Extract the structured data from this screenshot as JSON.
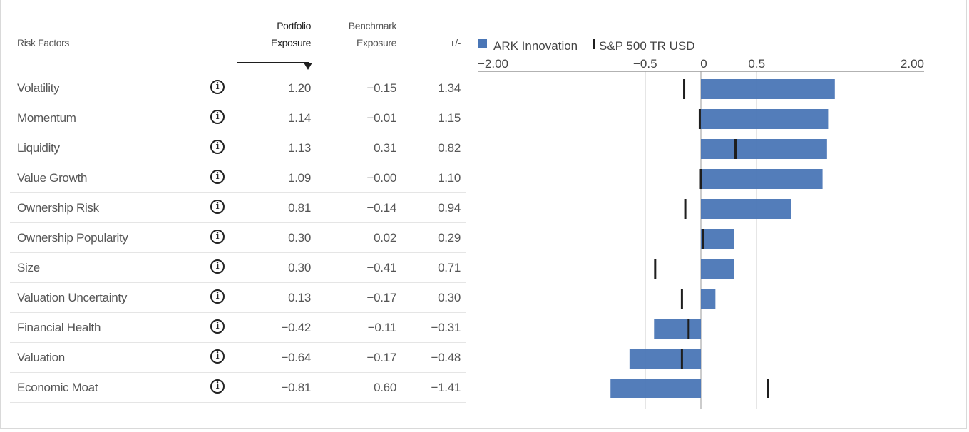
{
  "table": {
    "headers": {
      "factor": "Risk Factors",
      "portfolio_line1": "Portfolio",
      "portfolio_line2": "Exposure",
      "benchmark_line1": "Benchmark",
      "benchmark_line2": "Exposure",
      "diff": "+/-"
    },
    "sorted_by": "Portfolio Exposure",
    "info_icon": "i",
    "rows": [
      {
        "factor": "Volatility",
        "portfolio": "1.20",
        "benchmark": "−0.15",
        "diff": "1.34"
      },
      {
        "factor": "Momentum",
        "portfolio": "1.14",
        "benchmark": "−0.01",
        "diff": "1.15"
      },
      {
        "factor": "Liquidity",
        "portfolio": "1.13",
        "benchmark": "0.31",
        "diff": "0.82"
      },
      {
        "factor": "Value Growth",
        "portfolio": "1.09",
        "benchmark": "−0.00",
        "diff": "1.10"
      },
      {
        "factor": "Ownership Risk",
        "portfolio": "0.81",
        "benchmark": "−0.14",
        "diff": "0.94"
      },
      {
        "factor": "Ownership Popularity",
        "portfolio": "0.30",
        "benchmark": "0.02",
        "diff": "0.29"
      },
      {
        "factor": "Size",
        "portfolio": "0.30",
        "benchmark": "−0.41",
        "diff": "0.71"
      },
      {
        "factor": "Valuation Uncertainty",
        "portfolio": "0.13",
        "benchmark": "−0.17",
        "diff": "0.30"
      },
      {
        "factor": "Financial Health",
        "portfolio": "−0.42",
        "benchmark": "−0.11",
        "diff": "−0.31"
      },
      {
        "factor": "Valuation",
        "portfolio": "−0.64",
        "benchmark": "−0.17",
        "diff": "−0.48"
      },
      {
        "factor": "Economic Moat",
        "portfolio": "−0.81",
        "benchmark": "0.60",
        "diff": "−1.41"
      }
    ]
  },
  "chart_data": {
    "type": "bar",
    "orientation": "horizontal",
    "categories": [
      "Volatility",
      "Momentum",
      "Liquidity",
      "Value Growth",
      "Ownership Risk",
      "Ownership Popularity",
      "Size",
      "Valuation Uncertainty",
      "Financial Health",
      "Valuation",
      "Economic Moat"
    ],
    "series": [
      {
        "name": "ARK Innovation",
        "kind": "bar",
        "color": "#4a76b6",
        "values": [
          1.2,
          1.14,
          1.13,
          1.09,
          0.81,
          0.3,
          0.3,
          0.13,
          -0.42,
          -0.64,
          -0.81
        ]
      },
      {
        "name": "S&P 500 TR USD",
        "kind": "marker",
        "color": "#1e1e1e",
        "values": [
          -0.15,
          -0.01,
          0.31,
          0.0,
          -0.14,
          0.02,
          -0.41,
          -0.17,
          -0.11,
          -0.17,
          0.6
        ]
      }
    ],
    "xlim": [
      -2,
      2
    ],
    "ticks": [
      {
        "v": -2,
        "label": "−2.00"
      },
      {
        "v": -0.5,
        "label": "−0.5"
      },
      {
        "v": 0,
        "label": "0"
      },
      {
        "v": 0.5,
        "label": "0.5"
      },
      {
        "v": 2,
        "label": "2.00"
      }
    ],
    "gridlines": [
      -0.5,
      0,
      0.5
    ],
    "legend": "top-left"
  }
}
